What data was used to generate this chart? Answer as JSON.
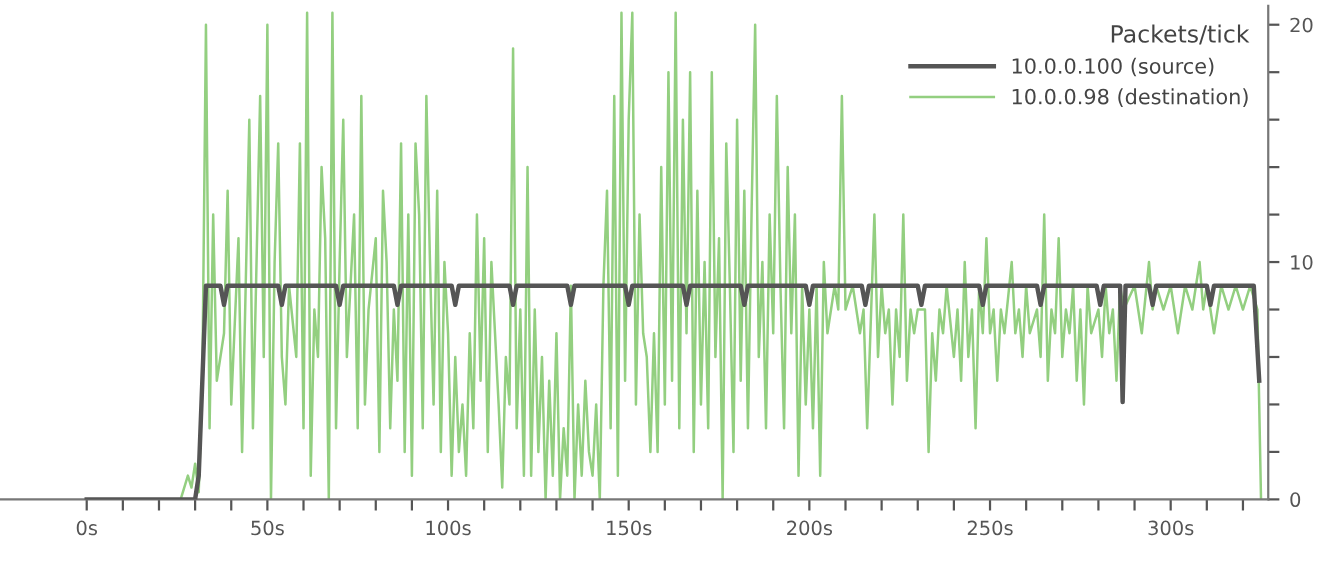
{
  "chart_data": {
    "type": "line",
    "legend_title": "Packets/tick",
    "legend": "top right",
    "grid": false,
    "marker": "none",
    "line_style": "solid",
    "xlim": [
      -24,
      327
    ],
    "xticks": [
      {
        "value": 0,
        "label": "0s"
      },
      {
        "value": 10,
        "label": null
      },
      {
        "value": 20,
        "label": null
      },
      {
        "value": 30,
        "label": null
      },
      {
        "value": 40,
        "label": null
      },
      {
        "value": 50,
        "label": "50s"
      },
      {
        "value": 60,
        "label": null
      },
      {
        "value": 70,
        "label": null
      },
      {
        "value": 80,
        "label": null
      },
      {
        "value": 90,
        "label": null
      },
      {
        "value": 100,
        "label": "100s"
      },
      {
        "value": 110,
        "label": null
      },
      {
        "value": 120,
        "label": null
      },
      {
        "value": 130,
        "label": null
      },
      {
        "value": 140,
        "label": null
      },
      {
        "value": 150,
        "label": "150s"
      },
      {
        "value": 160,
        "label": null
      },
      {
        "value": 170,
        "label": null
      },
      {
        "value": 180,
        "label": null
      },
      {
        "value": 190,
        "label": null
      },
      {
        "value": 200,
        "label": "200s"
      },
      {
        "value": 210,
        "label": null
      },
      {
        "value": 220,
        "label": null
      },
      {
        "value": 230,
        "label": null
      },
      {
        "value": 240,
        "label": null
      },
      {
        "value": 250,
        "label": "250s"
      },
      {
        "value": 260,
        "label": null
      },
      {
        "value": 270,
        "label": null
      },
      {
        "value": 280,
        "label": null
      },
      {
        "value": 290,
        "label": null
      },
      {
        "value": 300,
        "label": "300s"
      },
      {
        "value": 310,
        "label": null
      },
      {
        "value": 320,
        "label": null
      }
    ],
    "ylim": [
      0,
      20.8
    ],
    "yticks": [
      0,
      {
        "value": 2,
        "label": null
      },
      {
        "value": 4,
        "label": null
      },
      {
        "value": 6,
        "label": null
      },
      {
        "value": 8,
        "label": null
      },
      10,
      {
        "value": 12,
        "label": null
      },
      {
        "value": 14,
        "label": null
      },
      {
        "value": 16,
        "label": null
      },
      {
        "value": 18,
        "label": null
      },
      20
    ],
    "series": [
      {
        "name": "10.0.0.98 (destination)",
        "color": "#93cf80",
        "x": [
          20,
          26,
          28,
          29,
          30,
          31,
          32,
          33,
          34,
          35,
          36,
          38,
          39,
          40,
          42,
          43,
          44,
          45,
          46,
          48,
          49,
          50,
          51,
          52,
          53,
          54,
          55,
          56,
          58,
          59,
          60,
          61,
          62,
          63,
          64,
          65,
          66,
          67,
          68,
          69,
          70,
          71,
          72,
          74,
          75,
          76,
          77,
          78,
          80,
          81,
          82,
          83,
          84,
          85,
          86,
          87,
          88,
          89,
          90,
          91,
          92,
          93,
          94,
          95,
          96,
          97,
          98,
          99,
          100,
          101,
          102,
          103,
          104,
          105,
          106,
          107,
          108,
          109,
          110,
          111,
          112,
          113,
          114,
          115,
          116,
          117,
          118,
          119,
          120,
          121,
          122,
          123,
          124,
          125,
          126,
          127,
          128,
          129,
          130,
          131,
          132,
          133,
          134,
          135,
          136,
          137,
          138,
          139,
          140,
          141,
          142,
          143,
          144,
          145,
          146,
          147,
          148,
          149,
          150,
          151,
          152,
          153,
          154,
          155,
          156,
          157,
          158,
          159,
          160,
          161,
          162,
          163,
          164,
          165,
          166,
          167,
          168,
          169,
          170,
          171,
          172,
          173,
          174,
          175,
          176,
          177,
          178,
          179,
          180,
          181,
          182,
          183,
          184,
          185,
          186,
          187,
          188,
          189,
          190,
          191,
          192,
          193,
          194,
          195,
          196,
          197,
          198,
          199,
          200,
          201,
          202,
          203,
          204,
          205,
          207,
          208,
          209,
          210,
          212,
          214,
          215,
          216,
          218,
          219,
          220,
          221,
          222,
          223,
          224,
          225,
          226,
          227,
          228,
          229,
          230,
          232,
          233,
          234,
          235,
          236,
          237,
          238,
          240,
          241,
          242,
          243,
          244,
          245,
          246,
          247,
          248,
          249,
          250,
          251,
          252,
          253,
          254,
          256,
          257,
          258,
          259,
          260,
          261,
          263,
          264,
          265,
          266,
          267,
          268,
          269,
          270,
          271,
          272,
          273,
          274,
          275,
          276,
          277,
          278,
          280,
          281,
          282,
          283,
          284,
          285,
          286,
          287,
          290,
          292,
          294,
          295,
          296,
          298,
          300,
          302,
          304,
          306,
          308,
          309,
          310,
          312,
          314,
          316,
          318,
          320,
          322,
          324,
          325
        ],
        "values": [
          0,
          0,
          1,
          0.5,
          1.5,
          0.3,
          5,
          20,
          3,
          12,
          5,
          7,
          13,
          4,
          11,
          2,
          9,
          16,
          3,
          17,
          6,
          20,
          0,
          10,
          15,
          6,
          4,
          9,
          6,
          15,
          3,
          20.5,
          1,
          8,
          6,
          14,
          11,
          0,
          20.5,
          3,
          10,
          16,
          6,
          12,
          3,
          17,
          4,
          8,
          11,
          2,
          13,
          10,
          3,
          8,
          5,
          15,
          2,
          12,
          1,
          15,
          12,
          3,
          17,
          10,
          4,
          13,
          2,
          10,
          7,
          1,
          6,
          2,
          4,
          1,
          7,
          3,
          12,
          5,
          11,
          2,
          10,
          7,
          4,
          0.5,
          6,
          4,
          19,
          3,
          8,
          1,
          14,
          1,
          8,
          2,
          6,
          0,
          5,
          1,
          7,
          0,
          3,
          1,
          9,
          0,
          4,
          1,
          5,
          2,
          1,
          4,
          0,
          9,
          13,
          3,
          17,
          1,
          20.5,
          5,
          16,
          20.5,
          4,
          12,
          7,
          6,
          2,
          7,
          2,
          14,
          4,
          18,
          5,
          20.5,
          3,
          16,
          7,
          18,
          2,
          13,
          4,
          10,
          3,
          18,
          6,
          11,
          0,
          15,
          9,
          2,
          16,
          5,
          13,
          3,
          12,
          20,
          6,
          10,
          3,
          12,
          7,
          17,
          9,
          3,
          14,
          7,
          12,
          1,
          9,
          4,
          8,
          3,
          9,
          1,
          10,
          7,
          9,
          8,
          17,
          8,
          9,
          7,
          8,
          3,
          12,
          6,
          9,
          7,
          8,
          4,
          8,
          6,
          12,
          5,
          8,
          7,
          8,
          8,
          2,
          7,
          5,
          8,
          7,
          9,
          6,
          8,
          5,
          10,
          6,
          8,
          3,
          9,
          7,
          11,
          7,
          8,
          5,
          8,
          7,
          10,
          7,
          8,
          6,
          9,
          7,
          8,
          6,
          12,
          5,
          8,
          7,
          11,
          6,
          8,
          7,
          9,
          5,
          8,
          4,
          9,
          7,
          8,
          6,
          9,
          7,
          8,
          5,
          9,
          8,
          9,
          7,
          10,
          8,
          9,
          8,
          9,
          7,
          9,
          8,
          10,
          8,
          9,
          7,
          9,
          8,
          9,
          8,
          9,
          8,
          0
        ]
      },
      {
        "name": "10.0.0.100 (source)",
        "color": "#555555",
        "x": [
          0,
          30,
          31,
          33,
          37,
          38,
          39,
          53,
          54,
          55,
          69,
          70,
          71,
          85,
          86,
          87,
          101,
          102,
          103,
          117,
          118,
          119,
          133,
          134,
          135,
          149,
          150,
          151,
          165,
          166,
          167,
          181,
          182,
          183,
          199,
          200,
          201,
          214.5,
          215.5,
          216.5,
          230,
          231,
          232,
          247,
          248,
          249,
          263,
          264,
          265,
          279.5,
          280.5,
          281.5,
          286,
          286.7,
          287.5,
          294,
          295,
          296,
          310,
          311,
          312,
          323,
          324.5
        ],
        "values": [
          0,
          0,
          1,
          9,
          9,
          8.2,
          9,
          9,
          8.2,
          9,
          9,
          8.2,
          9,
          9,
          8.2,
          9,
          9,
          8.2,
          9,
          9,
          8.2,
          9,
          9,
          8.2,
          9,
          9,
          8.2,
          9,
          9,
          8.2,
          9,
          9,
          8.2,
          9,
          9,
          8.2,
          9,
          9,
          8.2,
          9,
          9,
          8.2,
          9,
          9,
          8.2,
          9,
          9,
          8.2,
          9,
          9,
          8.2,
          9,
          9,
          4.1,
          9,
          9,
          8.2,
          9,
          9,
          8.2,
          9,
          9,
          5
        ]
      }
    ]
  }
}
